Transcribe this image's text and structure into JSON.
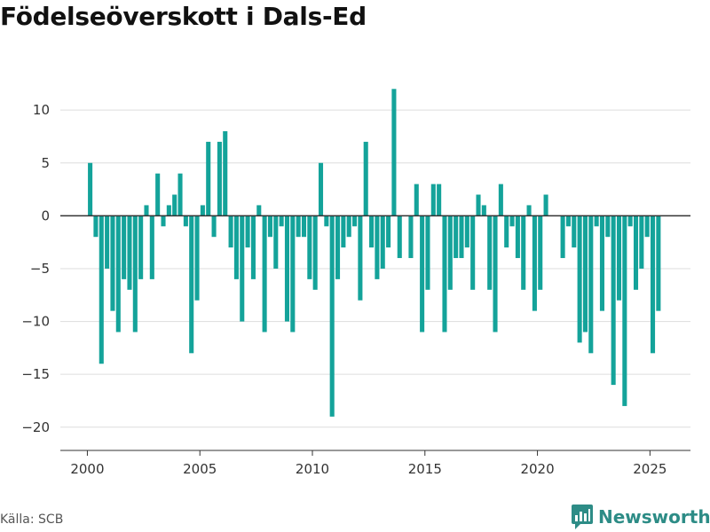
{
  "title": "Födelseöverskott i Dals-Ed",
  "source_label": "Källa: SCB",
  "brand": {
    "name": "Newsworthy",
    "icon": "newsworthy-logo-icon",
    "color": "#2d8c86"
  },
  "colors": {
    "bar": "#14a39a",
    "axis": "#333333",
    "grid": "#dddddd",
    "tick_text": "#333333"
  },
  "chart_data": {
    "type": "bar",
    "title": "Födelseöverskott i Dals-Ed",
    "xlabel": "",
    "ylabel": "",
    "xlim": [
      1998.8,
      2026.8
    ],
    "ylim": [
      -22.2,
      13.2
    ],
    "x_ticks": [
      2000,
      2005,
      2010,
      2015,
      2020,
      2025
    ],
    "y_ticks": [
      10,
      5,
      0,
      -5,
      -10,
      -15,
      -20
    ],
    "y_tick_labels": [
      "10",
      "5",
      "0",
      "−5",
      "−10",
      "−15",
      "−20"
    ],
    "grid": true,
    "legend": "none",
    "bar_width_years": 0.2,
    "x": [
      2000.125,
      2000.375,
      2000.625,
      2000.875,
      2001.125,
      2001.375,
      2001.625,
      2001.875,
      2002.125,
      2002.375,
      2002.625,
      2002.875,
      2003.125,
      2003.375,
      2003.625,
      2003.875,
      2004.125,
      2004.375,
      2004.625,
      2004.875,
      2005.125,
      2005.375,
      2005.625,
      2005.875,
      2006.125,
      2006.375,
      2006.625,
      2006.875,
      2007.125,
      2007.375,
      2007.625,
      2007.875,
      2008.125,
      2008.375,
      2008.625,
      2008.875,
      2009.125,
      2009.375,
      2009.625,
      2009.875,
      2010.125,
      2010.375,
      2010.625,
      2010.875,
      2011.125,
      2011.375,
      2011.625,
      2011.875,
      2012.125,
      2012.375,
      2012.625,
      2012.875,
      2013.125,
      2013.375,
      2013.625,
      2013.875,
      2014.125,
      2014.375,
      2014.625,
      2014.875,
      2015.125,
      2015.375,
      2015.625,
      2015.875,
      2016.125,
      2016.375,
      2016.625,
      2016.875,
      2017.125,
      2017.375,
      2017.625,
      2017.875,
      2018.125,
      2018.375,
      2018.625,
      2018.875,
      2019.125,
      2019.375,
      2019.625,
      2019.875,
      2020.125,
      2020.375,
      2020.625,
      2020.875,
      2021.125,
      2021.375,
      2021.625,
      2021.875,
      2022.125,
      2022.375,
      2022.625,
      2022.875,
      2023.125,
      2023.375,
      2023.625,
      2023.875,
      2024.125,
      2024.375,
      2024.625,
      2024.875,
      2025.125,
      2025.375
    ],
    "values": [
      5,
      -2,
      -14,
      -5,
      -9,
      -11,
      -6,
      -7,
      -11,
      -6,
      1,
      -6,
      4,
      -1,
      1,
      2,
      4,
      -1,
      -13,
      -8,
      1,
      7,
      -2,
      7,
      8,
      -3,
      -6,
      -10,
      -3,
      -6,
      1,
      -11,
      -2,
      -5,
      -1,
      -10,
      -11,
      -2,
      -2,
      -6,
      -7,
      5,
      -1,
      -19,
      -6,
      -3,
      -2,
      -1,
      -8,
      7,
      -3,
      -6,
      -5,
      -3,
      12,
      -4,
      0,
      -4,
      3,
      -11,
      -7,
      3,
      3,
      -11,
      -7,
      -4,
      -4,
      -3,
      -7,
      2,
      1,
      -7,
      -11,
      3,
      -3,
      -1,
      -4,
      -7,
      1,
      -9,
      -7,
      2,
      0,
      0,
      -4,
      -1,
      -3,
      -12,
      -11,
      -13,
      -1,
      -9,
      -2,
      -16,
      -8,
      -18,
      -1,
      -7,
      -5,
      -2,
      -13,
      -9
    ]
  }
}
